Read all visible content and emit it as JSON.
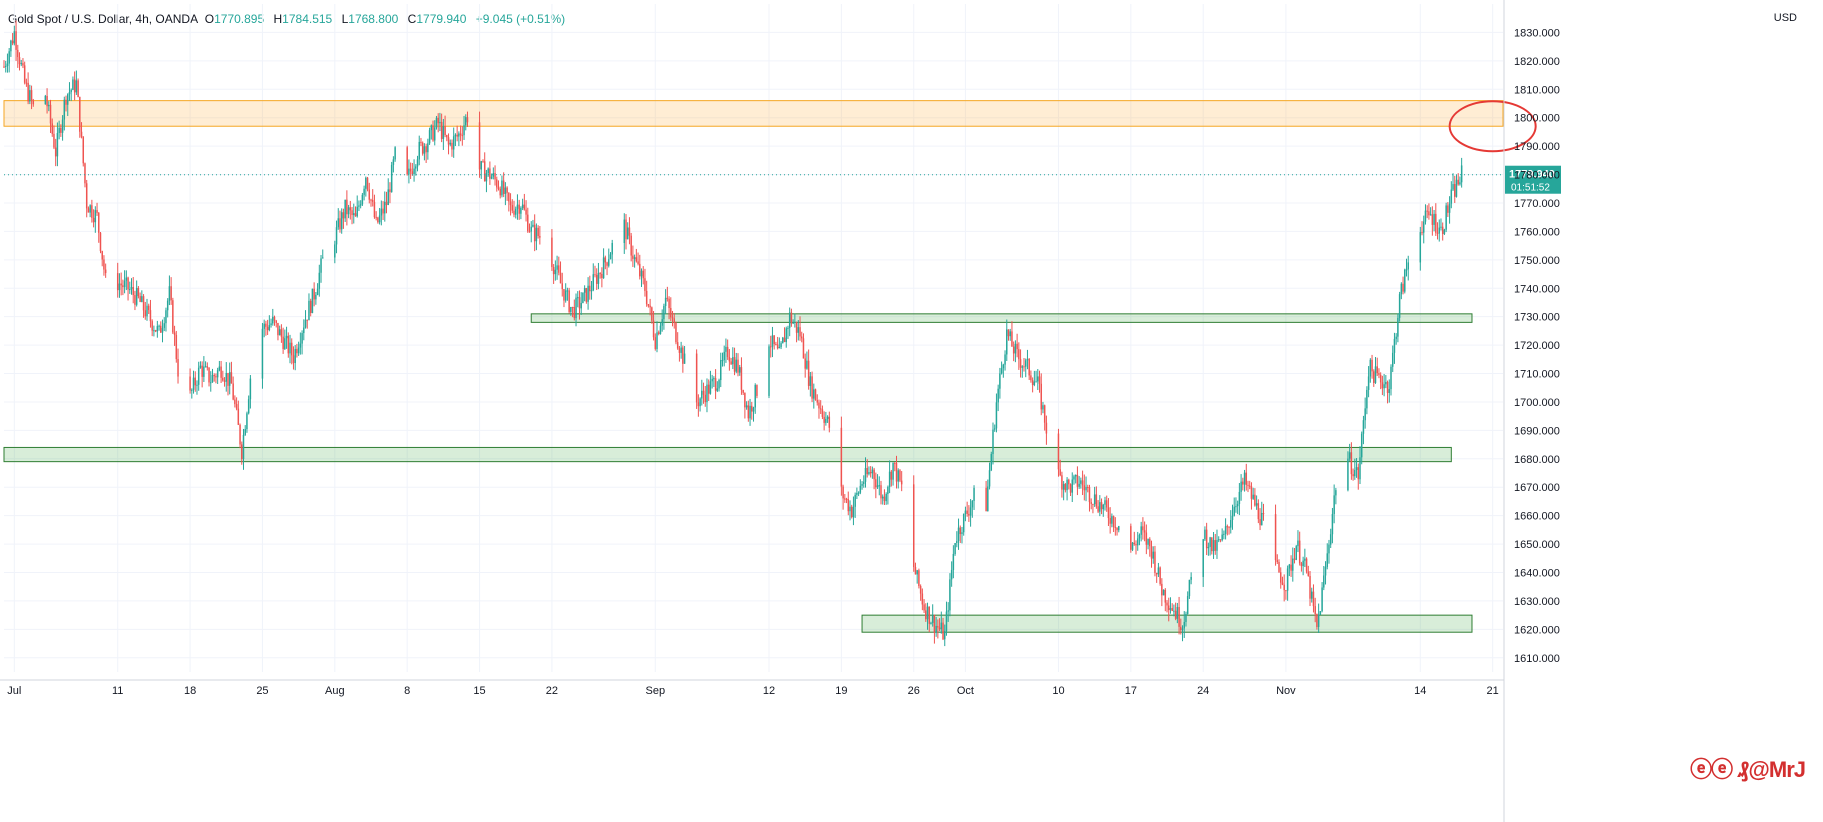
{
  "legend": {
    "symbol": "Gold Spot / U.S. Dollar, 4h, OANDA",
    "o_label": "O",
    "o_value": "1770.895",
    "h_label": "H",
    "h_value": "1784.515",
    "l_label": "L",
    "l_value": "1768.800",
    "c_label": "C",
    "c_value": "1779.940",
    "change": "+9.045 (+0.51%)"
  },
  "price_axis": {
    "currency": "USD"
  },
  "last_price": {
    "value": "1779.940",
    "countdown": "01:51:52"
  },
  "watermark": "ⓔⓔ ₰@MrJ",
  "colors": {
    "up": "#26a69a",
    "down": "#ef5350",
    "zone_fill": "rgba(76,175,80,0.22)",
    "zone_stroke": "#2e7d32",
    "resistance_fill": "rgba(255,167,38,0.20)",
    "resistance_stroke": "#f5a623",
    "circle": "#e53935",
    "axis_text": "#131722",
    "grid": "#f0f3fa",
    "price_tag": "#26a69a"
  },
  "chart_data": {
    "type": "candlestick",
    "title": "Gold Spot / U.S. Dollar, 4h, OANDA",
    "xlabel": "",
    "ylabel": "USD",
    "ylim": [
      1605,
      1840
    ],
    "grid": true,
    "y_ticks": [
      1610,
      1620,
      1630,
      1640,
      1650,
      1660,
      1670,
      1680,
      1690,
      1700,
      1710,
      1720,
      1730,
      1740,
      1750,
      1760,
      1770,
      1780,
      1790,
      1800,
      1810,
      1820,
      1830
    ],
    "x_ticks": [
      {
        "label": "Jul",
        "date": "2021-07-01"
      },
      {
        "label": "11",
        "date": "2021-07-11"
      },
      {
        "label": "18",
        "date": "2021-07-18"
      },
      {
        "label": "25",
        "date": "2021-07-25"
      },
      {
        "label": "Aug",
        "date": "2021-08-01"
      },
      {
        "label": "8",
        "date": "2021-08-08"
      },
      {
        "label": "15",
        "date": "2021-08-15"
      },
      {
        "label": "22",
        "date": "2021-08-22"
      },
      {
        "label": "Sep",
        "date": "2021-09-01"
      },
      {
        "label": "12",
        "date": "2021-09-12"
      },
      {
        "label": "19",
        "date": "2021-09-19"
      },
      {
        "label": "26",
        "date": "2021-09-26"
      },
      {
        "label": "Oct",
        "date": "2021-10-01"
      },
      {
        "label": "10",
        "date": "2021-10-10"
      },
      {
        "label": "17",
        "date": "2021-10-17"
      },
      {
        "label": "24",
        "date": "2021-10-24"
      },
      {
        "label": "Nov",
        "date": "2021-11-01"
      },
      {
        "label": "14",
        "date": "2021-11-14"
      },
      {
        "label": "21",
        "date": "2021-11-21"
      }
    ],
    "x_range": [
      "2021-06-30",
      "2021-11-22"
    ],
    "price_path": [
      [
        "2021-06-30",
        1818
      ],
      [
        "2021-07-01",
        1830
      ],
      [
        "2021-07-02",
        1812
      ],
      [
        "2021-07-03",
        1802
      ],
      [
        "2021-07-04",
        1808
      ],
      [
        "2021-07-05",
        1788
      ],
      [
        "2021-07-06",
        1808
      ],
      [
        "2021-07-07",
        1812
      ],
      [
        "2021-07-08",
        1770
      ],
      [
        "2021-07-09",
        1765
      ],
      [
        "2021-07-10",
        1738
      ],
      [
        "2021-07-11",
        1742
      ],
      [
        "2021-07-12",
        1740
      ],
      [
        "2021-07-13",
        1736
      ],
      [
        "2021-07-14",
        1730
      ],
      [
        "2021-07-15",
        1724
      ],
      [
        "2021-07-16",
        1738
      ],
      [
        "2021-07-17",
        1706
      ],
      [
        "2021-07-18",
        1702
      ],
      [
        "2021-07-19",
        1712
      ],
      [
        "2021-07-20",
        1708
      ],
      [
        "2021-07-21",
        1712
      ],
      [
        "2021-07-22",
        1706
      ],
      [
        "2021-07-23",
        1683
      ],
      [
        "2021-07-24",
        1714
      ],
      [
        "2021-07-25",
        1726
      ],
      [
        "2021-07-26",
        1728
      ],
      [
        "2021-07-27",
        1722
      ],
      [
        "2021-07-28",
        1716
      ],
      [
        "2021-07-29",
        1728
      ],
      [
        "2021-07-30",
        1738
      ],
      [
        "2021-07-31",
        1752
      ],
      [
        "2021-08-01",
        1758
      ],
      [
        "2021-08-02",
        1768
      ],
      [
        "2021-08-03",
        1764
      ],
      [
        "2021-08-04",
        1780
      ],
      [
        "2021-08-05",
        1762
      ],
      [
        "2021-08-06",
        1770
      ],
      [
        "2021-08-07",
        1790
      ],
      [
        "2021-08-08",
        1778
      ],
      [
        "2021-08-09",
        1788
      ],
      [
        "2021-08-10",
        1792
      ],
      [
        "2021-08-11",
        1798
      ],
      [
        "2021-08-12",
        1790
      ],
      [
        "2021-08-13",
        1794
      ],
      [
        "2021-08-14",
        1802
      ],
      [
        "2021-08-15",
        1782
      ],
      [
        "2021-08-16",
        1780
      ],
      [
        "2021-08-17",
        1776
      ],
      [
        "2021-08-18",
        1768
      ],
      [
        "2021-08-19",
        1770
      ],
      [
        "2021-08-20",
        1760
      ],
      [
        "2021-08-21",
        1758
      ],
      [
        "2021-08-22",
        1750
      ],
      [
        "2021-08-23",
        1740
      ],
      [
        "2021-08-24",
        1732
      ],
      [
        "2021-08-25",
        1736
      ],
      [
        "2021-08-26",
        1742
      ],
      [
        "2021-08-27",
        1748
      ],
      [
        "2021-08-28",
        1756
      ],
      [
        "2021-08-29",
        1762
      ],
      [
        "2021-08-30",
        1750
      ],
      [
        "2021-08-31",
        1740
      ],
      [
        "2021-09-01",
        1722
      ],
      [
        "2021-09-02",
        1736
      ],
      [
        "2021-09-03",
        1724
      ],
      [
        "2021-09-04",
        1712
      ],
      [
        "2021-09-05",
        1700
      ],
      [
        "2021-09-06",
        1704
      ],
      [
        "2021-09-07",
        1708
      ],
      [
        "2021-09-08",
        1718
      ],
      [
        "2021-09-09",
        1712
      ],
      [
        "2021-09-10",
        1696
      ],
      [
        "2021-09-11",
        1706
      ],
      [
        "2021-09-12",
        1722
      ],
      [
        "2021-09-13",
        1716
      ],
      [
        "2021-09-14",
        1730
      ],
      [
        "2021-09-15",
        1724
      ],
      [
        "2021-09-16",
        1706
      ],
      [
        "2021-09-17",
        1698
      ],
      [
        "2021-09-18",
        1690
      ],
      [
        "2021-09-19",
        1668
      ],
      [
        "2021-09-20",
        1662
      ],
      [
        "2021-09-21",
        1672
      ],
      [
        "2021-09-22",
        1676
      ],
      [
        "2021-09-23",
        1666
      ],
      [
        "2021-09-24",
        1678
      ],
      [
        "2021-09-25",
        1668
      ],
      [
        "2021-09-26",
        1642
      ],
      [
        "2021-09-27",
        1628
      ],
      [
        "2021-09-28",
        1622
      ],
      [
        "2021-09-29",
        1618
      ],
      [
        "2021-09-30",
        1652
      ],
      [
        "2021-10-01",
        1660
      ],
      [
        "2021-10-02",
        1668
      ],
      [
        "2021-10-03",
        1664
      ],
      [
        "2021-10-04",
        1700
      ],
      [
        "2021-10-05",
        1724
      ],
      [
        "2021-10-06",
        1716
      ],
      [
        "2021-10-07",
        1712
      ],
      [
        "2021-10-08",
        1706
      ],
      [
        "2021-10-09",
        1688
      ],
      [
        "2021-10-10",
        1674
      ],
      [
        "2021-10-11",
        1670
      ],
      [
        "2021-10-12",
        1672
      ],
      [
        "2021-10-13",
        1668
      ],
      [
        "2021-10-14",
        1664
      ],
      [
        "2021-10-15",
        1660
      ],
      [
        "2021-10-16",
        1656
      ],
      [
        "2021-10-17",
        1648
      ],
      [
        "2021-10-18",
        1654
      ],
      [
        "2021-10-19",
        1648
      ],
      [
        "2021-10-20",
        1634
      ],
      [
        "2021-10-21",
        1628
      ],
      [
        "2021-10-22",
        1622
      ],
      [
        "2021-10-23",
        1640
      ],
      [
        "2021-10-24",
        1654
      ],
      [
        "2021-10-25",
        1648
      ],
      [
        "2021-10-26",
        1652
      ],
      [
        "2021-10-27",
        1664
      ],
      [
        "2021-10-28",
        1672
      ],
      [
        "2021-10-29",
        1664
      ],
      [
        "2021-10-30",
        1656
      ],
      [
        "2021-10-31",
        1642
      ],
      [
        "2021-11-01",
        1636
      ],
      [
        "2021-11-02",
        1650
      ],
      [
        "2021-11-03",
        1640
      ],
      [
        "2021-11-04",
        1620
      ],
      [
        "2021-11-05",
        1646
      ],
      [
        "2021-11-06",
        1676
      ],
      [
        "2021-11-07",
        1680
      ],
      [
        "2021-11-08",
        1674
      ],
      [
        "2021-11-09",
        1712
      ],
      [
        "2021-11-10",
        1708
      ],
      [
        "2021-11-11",
        1706
      ],
      [
        "2021-11-12",
        1736
      ],
      [
        "2021-11-13",
        1752
      ],
      [
        "2021-11-14",
        1762
      ],
      [
        "2021-11-15",
        1766
      ],
      [
        "2021-11-16",
        1760
      ],
      [
        "2021-11-17",
        1772
      ],
      [
        "2021-11-18",
        1780
      ]
    ],
    "zones": [
      {
        "kind": "resistance",
        "from": "2021-06-30",
        "to": "2021-11-22",
        "low": 1797,
        "high": 1806
      },
      {
        "kind": "support",
        "from": "2021-08-20",
        "to": "2021-11-19",
        "low": 1728,
        "high": 1731
      },
      {
        "kind": "support",
        "from": "2021-06-30",
        "to": "2021-11-17",
        "low": 1679,
        "high": 1684
      },
      {
        "kind": "support",
        "from": "2021-09-21",
        "to": "2021-11-19",
        "low": 1619,
        "high": 1625
      }
    ],
    "annotations": [
      {
        "kind": "ellipse",
        "center_date": "2021-11-21",
        "center_price": 1797
      }
    ]
  }
}
